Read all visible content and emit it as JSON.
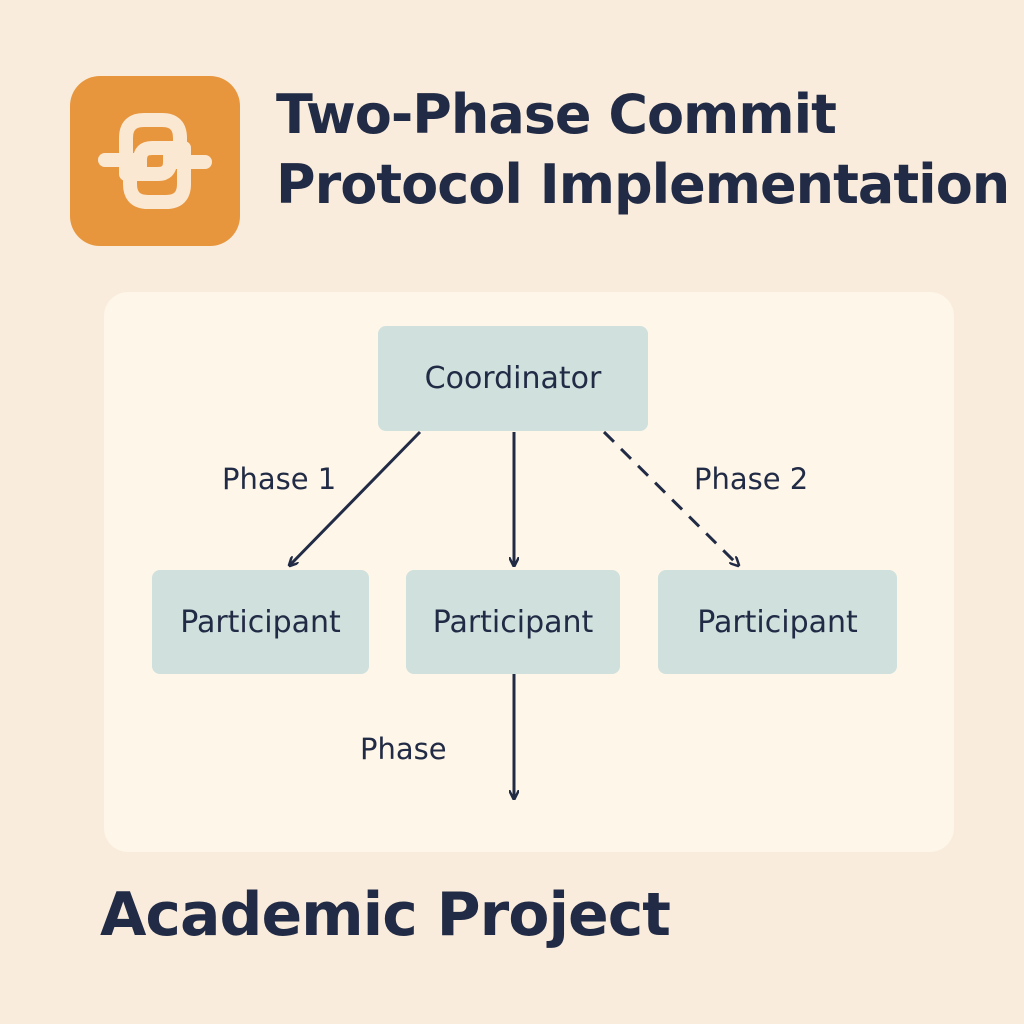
{
  "header": {
    "logo_icon": "python-logo-icon",
    "title_line1": "Two-Phase Commit",
    "title_line2": "Protocol Implementation"
  },
  "diagram": {
    "coordinator": "Coordinator",
    "participants": [
      "Participant",
      "Participant",
      "Participant"
    ],
    "edge_labels": {
      "left": "Phase 1",
      "right": "Phase 2",
      "bottom": "Phase"
    },
    "edges": [
      {
        "from": "Coordinator",
        "to": "Participant 1",
        "style": "solid"
      },
      {
        "from": "Coordinator",
        "to": "Participant 2",
        "style": "solid"
      },
      {
        "from": "Coordinator",
        "to": "Participant 3",
        "style": "dashed"
      },
      {
        "from": "Participant 2",
        "to": "",
        "style": "solid"
      }
    ]
  },
  "footer": {
    "text": "Academic Project"
  },
  "colors": {
    "background": "#f9ecdc",
    "panel": "#fdf6e9",
    "node_fill": "#cfe0dd",
    "logo_bg": "#e7963e",
    "text": "#222b45"
  }
}
